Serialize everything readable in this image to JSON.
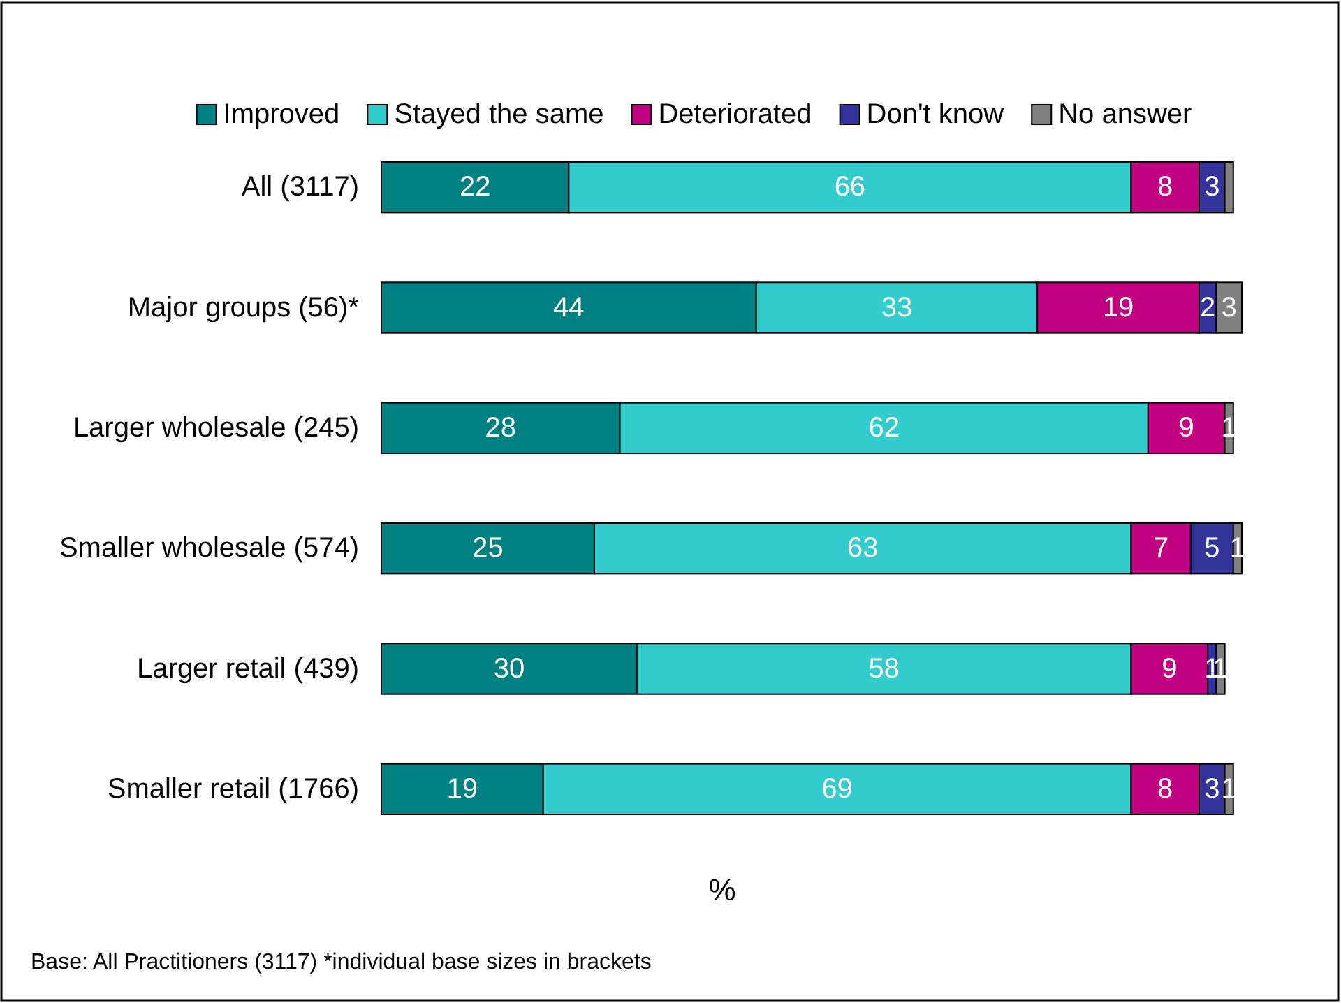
{
  "chart_data": {
    "type": "bar",
    "orientation": "horizontal",
    "stacked": true,
    "categories": [
      "All (3117)",
      "Major groups (56)*",
      "Larger wholesale (245)",
      "Smaller wholesale (574)",
      "Larger retail (439)",
      "Smaller retail (1766)"
    ],
    "series": [
      {
        "name": "Improved",
        "color": "#008080",
        "values": [
          22,
          44,
          28,
          25,
          30,
          19
        ],
        "value_labels": [
          "22",
          "44",
          "28",
          "25",
          "30",
          "19"
        ]
      },
      {
        "name": "Stayed the same",
        "color": "#33cccc",
        "values": [
          66,
          33,
          62,
          63,
          58,
          69
        ],
        "value_labels": [
          "66",
          "33",
          "62",
          "63",
          "58",
          "69"
        ]
      },
      {
        "name": "Deteriorated",
        "color": "#c0007f",
        "values": [
          8,
          19,
          9,
          7,
          9,
          8
        ],
        "value_labels": [
          "8",
          "19",
          "9",
          "7",
          "9",
          "8"
        ]
      },
      {
        "name": "Don't know",
        "color": "#333399",
        "values": [
          3,
          2,
          null,
          5,
          1,
          3
        ],
        "value_labels": [
          "3",
          "2",
          null,
          "5",
          "1",
          "3"
        ]
      },
      {
        "name": "No answer",
        "color": "#808080",
        "values": [
          1,
          3,
          1,
          1,
          1,
          1
        ],
        "value_labels": [
          null,
          "3",
          "1",
          "1",
          "1",
          "1"
        ]
      }
    ],
    "xlim": [
      0,
      101
    ],
    "xlabel": "%",
    "legend": "top",
    "tick_labels": "y",
    "annotations": [
      "Base: All Practitioners (3117) *individual base sizes in brackets"
    ]
  }
}
